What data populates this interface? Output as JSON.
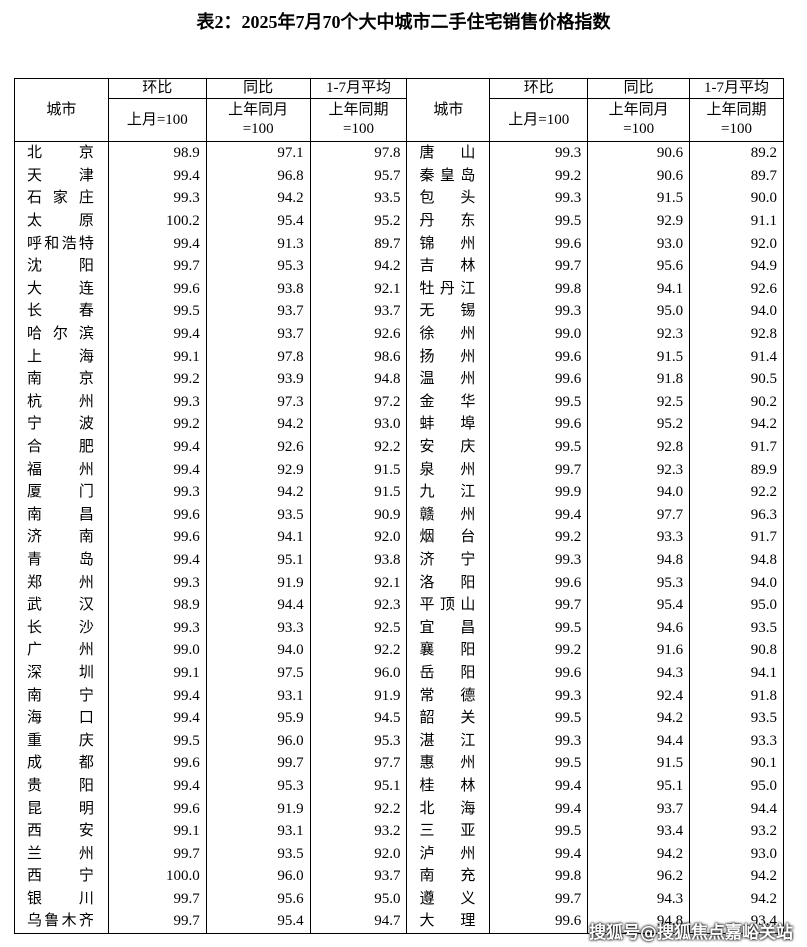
{
  "header": {
    "title": "表2：2025年7月70个大中城市二手住宅销售价格指数"
  },
  "table": {
    "city_label": "城市",
    "groups": [
      "环比",
      "同比",
      "1-7月平均"
    ],
    "bases": [
      "上月=100",
      "上年同月\n=100",
      "上年同期\n=100"
    ],
    "rows": [
      [
        "北京",
        "98.9",
        "97.1",
        "97.8",
        "唐山",
        "99.3",
        "90.6",
        "89.2"
      ],
      [
        "天津",
        "99.4",
        "96.8",
        "95.7",
        "秦皇岛",
        "99.2",
        "90.6",
        "89.7"
      ],
      [
        "石家庄",
        "99.3",
        "94.2",
        "93.5",
        "包头",
        "99.3",
        "91.5",
        "90.0"
      ],
      [
        "太原",
        "100.2",
        "95.4",
        "95.2",
        "丹东",
        "99.5",
        "92.9",
        "91.1"
      ],
      [
        "呼和浩特",
        "99.4",
        "91.3",
        "89.7",
        "锦州",
        "99.6",
        "93.0",
        "92.0"
      ],
      [
        "沈阳",
        "99.7",
        "95.3",
        "94.2",
        "吉林",
        "99.7",
        "95.6",
        "94.9"
      ],
      [
        "大连",
        "99.6",
        "93.8",
        "92.1",
        "牡丹江",
        "99.8",
        "94.1",
        "92.6"
      ],
      [
        "长春",
        "99.5",
        "93.7",
        "93.7",
        "无锡",
        "99.3",
        "95.0",
        "94.0"
      ],
      [
        "哈尔滨",
        "99.4",
        "93.7",
        "92.6",
        "徐州",
        "99.0",
        "92.3",
        "92.8"
      ],
      [
        "上海",
        "99.1",
        "97.8",
        "98.6",
        "扬州",
        "99.6",
        "91.5",
        "91.4"
      ],
      [
        "南京",
        "99.2",
        "93.9",
        "94.8",
        "温州",
        "99.6",
        "91.8",
        "90.5"
      ],
      [
        "杭州",
        "99.3",
        "97.3",
        "97.2",
        "金华",
        "99.5",
        "92.5",
        "90.2"
      ],
      [
        "宁波",
        "99.2",
        "94.2",
        "93.0",
        "蚌埠",
        "99.6",
        "95.2",
        "94.2"
      ],
      [
        "合肥",
        "99.4",
        "92.6",
        "92.2",
        "安庆",
        "99.5",
        "92.8",
        "91.7"
      ],
      [
        "福州",
        "99.4",
        "92.9",
        "91.5",
        "泉州",
        "99.7",
        "92.3",
        "89.9"
      ],
      [
        "厦门",
        "99.3",
        "94.2",
        "91.5",
        "九江",
        "99.9",
        "94.0",
        "92.2"
      ],
      [
        "南昌",
        "99.6",
        "93.5",
        "90.9",
        "赣州",
        "99.4",
        "97.7",
        "96.3"
      ],
      [
        "济南",
        "99.6",
        "94.1",
        "92.0",
        "烟台",
        "99.2",
        "93.3",
        "91.7"
      ],
      [
        "青岛",
        "99.4",
        "95.1",
        "93.8",
        "济宁",
        "99.3",
        "94.8",
        "94.8"
      ],
      [
        "郑州",
        "99.3",
        "91.9",
        "92.1",
        "洛阳",
        "99.6",
        "95.3",
        "94.0"
      ],
      [
        "武汉",
        "98.9",
        "94.4",
        "92.3",
        "平顶山",
        "99.7",
        "95.4",
        "95.0"
      ],
      [
        "长沙",
        "99.3",
        "93.3",
        "92.5",
        "宜昌",
        "99.5",
        "94.6",
        "93.5"
      ],
      [
        "广州",
        "99.0",
        "94.0",
        "92.2",
        "襄阳",
        "99.2",
        "91.6",
        "90.8"
      ],
      [
        "深圳",
        "99.1",
        "97.5",
        "96.0",
        "岳阳",
        "99.6",
        "94.3",
        "94.1"
      ],
      [
        "南宁",
        "99.4",
        "93.1",
        "91.9",
        "常德",
        "99.3",
        "92.4",
        "91.8"
      ],
      [
        "海口",
        "99.4",
        "95.9",
        "94.5",
        "韶关",
        "99.5",
        "94.2",
        "93.5"
      ],
      [
        "重庆",
        "99.5",
        "96.0",
        "95.3",
        "湛江",
        "99.3",
        "94.4",
        "93.3"
      ],
      [
        "成都",
        "99.6",
        "99.7",
        "97.7",
        "惠州",
        "99.5",
        "91.5",
        "90.1"
      ],
      [
        "贵阳",
        "99.4",
        "95.3",
        "95.1",
        "桂林",
        "99.4",
        "95.1",
        "95.0"
      ],
      [
        "昆明",
        "99.6",
        "91.9",
        "92.2",
        "北海",
        "99.4",
        "93.7",
        "94.4"
      ],
      [
        "西安",
        "99.1",
        "93.1",
        "93.2",
        "三亚",
        "99.5",
        "93.4",
        "93.2"
      ],
      [
        "兰州",
        "99.7",
        "93.5",
        "92.0",
        "泸州",
        "99.4",
        "94.2",
        "93.0"
      ],
      [
        "西宁",
        "100.0",
        "96.0",
        "93.7",
        "南充",
        "99.8",
        "96.2",
        "94.2"
      ],
      [
        "银川",
        "99.7",
        "95.6",
        "95.0",
        "遵义",
        "99.7",
        "94.3",
        "94.2"
      ],
      [
        "乌鲁木齐",
        "99.7",
        "95.4",
        "94.7",
        "大理",
        "99.6",
        "94.8",
        "93.4"
      ]
    ]
  },
  "watermark": "搜狐号@搜狐焦点嘉峪关站"
}
